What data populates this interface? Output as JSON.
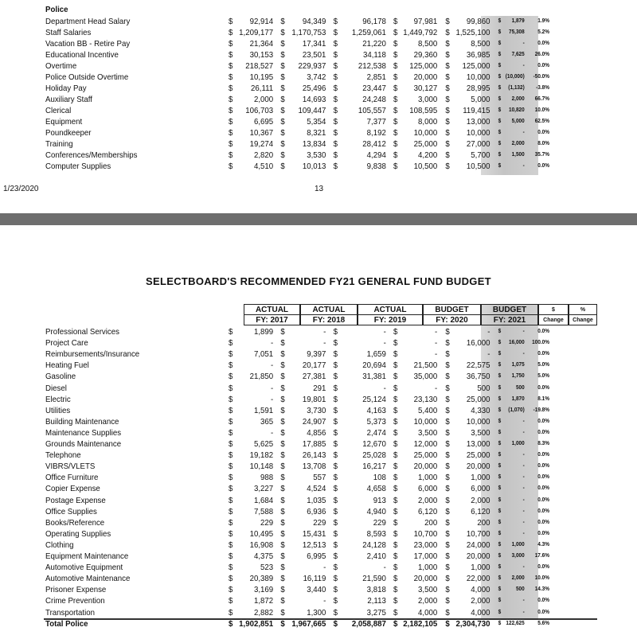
{
  "top": {
    "section_title": "Police",
    "rows": [
      [
        "Department Head Salary",
        "92,914",
        "94,349",
        "96,178",
        "97,981",
        "99,860",
        "1,879",
        "1.9%"
      ],
      [
        "Staff Salaries",
        "1,209,177",
        "1,170,753",
        "1,259,061",
        "1,449,792",
        "1,525,100",
        "75,308",
        "5.2%"
      ],
      [
        "Vacation BB - Retire Pay",
        "21,364",
        "17,341",
        "21,220",
        "8,500",
        "8,500",
        "-",
        "0.0%"
      ],
      [
        "Educational Incentive",
        "30,153",
        "23,501",
        "34,118",
        "29,360",
        "36,985",
        "7,625",
        "26.0%"
      ],
      [
        "Overtime",
        "218,527",
        "229,937",
        "212,538",
        "125,000",
        "125,000",
        "-",
        "0.0%"
      ],
      [
        "Police Outside Overtime",
        "10,195",
        "3,742",
        "2,851",
        "20,000",
        "10,000",
        "(10,000)",
        "-50.0%"
      ],
      [
        "Holiday Pay",
        "26,111",
        "25,496",
        "23,447",
        "30,127",
        "28,995",
        "(1,132)",
        "-3.8%"
      ],
      [
        "Auxiliary Staff",
        "2,000",
        "14,693",
        "24,248",
        "3,000",
        "5,000",
        "2,000",
        "66.7%"
      ],
      [
        "Clerical",
        "106,703",
        "109,447",
        "105,557",
        "108,595",
        "119,415",
        "10,820",
        "10.0%"
      ],
      [
        "Equipment",
        "6,695",
        "5,354",
        "7,377",
        "8,000",
        "13,000",
        "5,000",
        "62.5%"
      ],
      [
        "Poundkeeper",
        "10,367",
        "8,321",
        "8,192",
        "10,000",
        "10,000",
        "-",
        "0.0%"
      ],
      [
        "Training",
        "19,274",
        "13,834",
        "28,412",
        "25,000",
        "27,000",
        "2,000",
        "8.0%"
      ],
      [
        "Conferences/Memberships",
        "2,820",
        "3,530",
        "4,294",
        "4,200",
        "5,700",
        "1,500",
        "35.7%"
      ],
      [
        "Computer Supplies",
        "4,510",
        "10,013",
        "9,838",
        "10,500",
        "10,500",
        "-",
        "0.0%"
      ]
    ],
    "footer_date": "1/23/2020",
    "page_number": "13"
  },
  "bottom": {
    "title": "SELECTBOARD'S RECOMMENDED FY21 GENERAL FUND BUDGET",
    "headers": [
      [
        "ACTUAL",
        "FY: 2017"
      ],
      [
        "ACTUAL",
        "FY: 2018"
      ],
      [
        "ACTUAL",
        "FY: 2019"
      ],
      [
        "BUDGET",
        "FY: 2020"
      ],
      [
        "BUDGET",
        "FY: 2021"
      ],
      [
        "$",
        "Change"
      ],
      [
        "%",
        "Change"
      ]
    ],
    "rows": [
      [
        "Professional Services",
        "1,899",
        "-",
        "-",
        "-",
        "-",
        "-",
        "0.0%"
      ],
      [
        "Project Care",
        "-",
        "-",
        "-",
        "-",
        "16,000",
        "16,000",
        "100.0%"
      ],
      [
        "Reimbursements/Insurance",
        "7,051",
        "9,397",
        "1,659",
        "-",
        "-",
        "-",
        "0.0%"
      ],
      [
        "Heating Fuel",
        "-",
        "20,177",
        "20,694",
        "21,500",
        "22,575",
        "1,075",
        "5.0%"
      ],
      [
        "Gasoline",
        "21,850",
        "27,381",
        "31,381",
        "35,000",
        "36,750",
        "1,750",
        "5.0%"
      ],
      [
        "Diesel",
        "-",
        "291",
        "-",
        "-",
        "500",
        "500",
        "0.0%"
      ],
      [
        "Electric",
        "-",
        "19,801",
        "25,124",
        "23,130",
        "25,000",
        "1,870",
        "8.1%"
      ],
      [
        "Utilities",
        "1,591",
        "3,730",
        "4,163",
        "5,400",
        "4,330",
        "(1,070)",
        "-19.8%"
      ],
      [
        "Building Maintenance",
        "365",
        "24,907",
        "5,373",
        "10,000",
        "10,000",
        "-",
        "0.0%"
      ],
      [
        "Maintenance Supplies",
        "-",
        "4,856",
        "2,474",
        "3,500",
        "3,500",
        "-",
        "0.0%"
      ],
      [
        "Grounds Maintenance",
        "5,625",
        "17,885",
        "12,670",
        "12,000",
        "13,000",
        "1,000",
        "8.3%"
      ],
      [
        "Telephone",
        "19,182",
        "26,143",
        "25,028",
        "25,000",
        "25,000",
        "-",
        "0.0%"
      ],
      [
        "VIBRS/VLETS",
        "10,148",
        "13,708",
        "16,217",
        "20,000",
        "20,000",
        "-",
        "0.0%"
      ],
      [
        "Office Furniture",
        "988",
        "557",
        "108",
        "1,000",
        "1,000",
        "-",
        "0.0%"
      ],
      [
        "Copier Expense",
        "3,227",
        "4,524",
        "4,658",
        "6,000",
        "6,000",
        "-",
        "0.0%"
      ],
      [
        "Postage Expense",
        "1,684",
        "1,035",
        "913",
        "2,000",
        "2,000",
        "-",
        "0.0%"
      ],
      [
        "Office Supplies",
        "7,588",
        "6,936",
        "4,940",
        "6,120",
        "6,120",
        "-",
        "0.0%"
      ],
      [
        "Books/Reference",
        "229",
        "229",
        "229",
        "200",
        "200",
        "-",
        "0.0%"
      ],
      [
        "Operating Supplies",
        "10,495",
        "15,431",
        "8,593",
        "10,700",
        "10,700",
        "-",
        "0.0%"
      ],
      [
        "Clothing",
        "16,908",
        "12,513",
        "24,128",
        "23,000",
        "24,000",
        "1,000",
        "4.3%"
      ],
      [
        "Equipment Maintenance",
        "4,375",
        "6,995",
        "2,410",
        "17,000",
        "20,000",
        "3,000",
        "17.6%"
      ],
      [
        "Automotive Equipment",
        "523",
        "-",
        "-",
        "1,000",
        "1,000",
        "-",
        "0.0%"
      ],
      [
        "Automotive Maintenance",
        "20,389",
        "16,119",
        "21,590",
        "20,000",
        "22,000",
        "2,000",
        "10.0%"
      ],
      [
        "Prisoner Expense",
        "3,169",
        "3,440",
        "3,818",
        "3,500",
        "4,000",
        "500",
        "14.3%"
      ],
      [
        "Crime Prevention",
        "1,872",
        "-",
        "2,113",
        "2,000",
        "2,000",
        "-",
        "0.0%"
      ],
      [
        "Transportation",
        "2,882",
        "1,300",
        "3,275",
        "4,000",
        "4,000",
        "-",
        "0.0%"
      ]
    ],
    "total": [
      "Total Police",
      "1,902,851",
      "1,967,665",
      "2,058,887",
      "2,182,105",
      "2,304,730",
      "122,625",
      "5.6%"
    ]
  },
  "currency_symbol": "$"
}
